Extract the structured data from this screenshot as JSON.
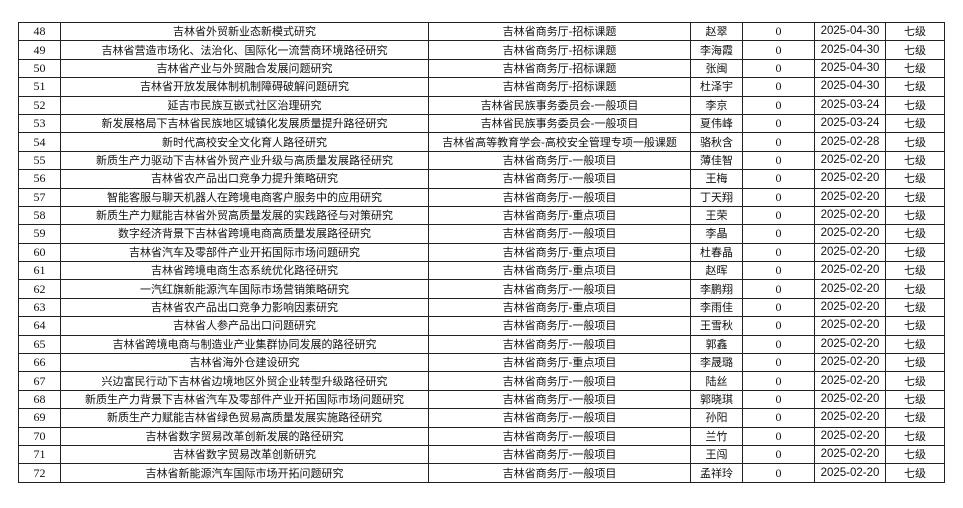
{
  "rows": [
    {
      "no": "48",
      "title": "吉林省外贸新业态新模式研究",
      "dept": "吉林省商务厅-招标课题",
      "person": "赵翠",
      "count": "0",
      "date": "2025-04-30",
      "level": "七级"
    },
    {
      "no": "49",
      "title": "吉林省营造市场化、法治化、国际化一流营商环境路径研究",
      "dept": "吉林省商务厅-招标课题",
      "person": "李海霞",
      "count": "0",
      "date": "2025-04-30",
      "level": "七级"
    },
    {
      "no": "50",
      "title": "吉林省产业与外贸融合发展问题研究",
      "dept": "吉林省商务厅-招标课题",
      "person": "张闽",
      "count": "0",
      "date": "2025-04-30",
      "level": "七级"
    },
    {
      "no": "51",
      "title": "吉林省开放发展体制机制障碍破解问题研究",
      "dept": "吉林省商务厅-招标课题",
      "person": "杜泽宇",
      "count": "0",
      "date": "2025-04-30",
      "level": "七级"
    },
    {
      "no": "52",
      "title": "延吉市民族互嵌式社区治理研究",
      "dept": "吉林省民族事务委员会-一般项目",
      "person": "李京",
      "count": "0",
      "date": "2025-03-24",
      "level": "七级"
    },
    {
      "no": "53",
      "title": "新发展格局下吉林省民族地区城镇化发展质量提升路径研究",
      "dept": "吉林省民族事务委员会-一般项目",
      "person": "夏伟峰",
      "count": "0",
      "date": "2025-03-24",
      "level": "七级"
    },
    {
      "no": "54",
      "title": "新时代高校安全文化育人路径研究",
      "dept": "吉林省高等教育学会-高校安全管理专项一般课题",
      "person": "骆秋含",
      "count": "0",
      "date": "2025-02-28",
      "level": "七级"
    },
    {
      "no": "55",
      "title": "新质生产力驱动下吉林省外贸产业升级与高质量发展路径研究",
      "dept": "吉林省商务厅-一般项目",
      "person": "薄佳智",
      "count": "0",
      "date": "2025-02-20",
      "level": "七级"
    },
    {
      "no": "56",
      "title": "吉林省农产品出口竞争力提升策略研究",
      "dept": "吉林省商务厅-一般项目",
      "person": "王梅",
      "count": "0",
      "date": "2025-02-20",
      "level": "七级"
    },
    {
      "no": "57",
      "title": "智能客服与聊天机器人在跨境电商客户服务中的应用研究",
      "dept": "吉林省商务厅-一般项目",
      "person": "丁天翔",
      "count": "0",
      "date": "2025-02-20",
      "level": "七级"
    },
    {
      "no": "58",
      "title": "新质生产力赋能吉林省外贸高质量发展的实践路径与对策研究",
      "dept": "吉林省商务厅-重点项目",
      "person": "王荣",
      "count": "0",
      "date": "2025-02-20",
      "level": "七级"
    },
    {
      "no": "59",
      "title": "数字经济背景下吉林省跨境电商高质量发展路径研究",
      "dept": "吉林省商务厅-一般项目",
      "person": "李晶",
      "count": "0",
      "date": "2025-02-20",
      "level": "七级"
    },
    {
      "no": "60",
      "title": "吉林省汽车及零部件产业开拓国际市场问题研究",
      "dept": "吉林省商务厅-重点项目",
      "person": "杜春晶",
      "count": "0",
      "date": "2025-02-20",
      "level": "七级"
    },
    {
      "no": "61",
      "title": "吉林省跨境电商生态系统优化路径研究",
      "dept": "吉林省商务厅-重点项目",
      "person": "赵晖",
      "count": "0",
      "date": "2025-02-20",
      "level": "七级"
    },
    {
      "no": "62",
      "title": "一汽红旗新能源汽车国际市场营销策略研究",
      "dept": "吉林省商务厅-一般项目",
      "person": "李鹏翔",
      "count": "0",
      "date": "2025-02-20",
      "level": "七级"
    },
    {
      "no": "63",
      "title": "吉林省农产品出口竞争力影响因素研究",
      "dept": "吉林省商务厅-重点项目",
      "person": "李雨佳",
      "count": "0",
      "date": "2025-02-20",
      "level": "七级"
    },
    {
      "no": "64",
      "title": "吉林省人参产品出口问题研究",
      "dept": "吉林省商务厅-一般项目",
      "person": "王雪秋",
      "count": "0",
      "date": "2025-02-20",
      "level": "七级"
    },
    {
      "no": "65",
      "title": "吉林省跨境电商与制造业产业集群协同发展的路径研究",
      "dept": "吉林省商务厅-一般项目",
      "person": "郭鑫",
      "count": "0",
      "date": "2025-02-20",
      "level": "七级"
    },
    {
      "no": "66",
      "title": "吉林省海外仓建设研究",
      "dept": "吉林省商务厅-重点项目",
      "person": "李晟璐",
      "count": "0",
      "date": "2025-02-20",
      "level": "七级"
    },
    {
      "no": "67",
      "title": "兴边富民行动下吉林省边境地区外贸企业转型升级路径研究",
      "dept": "吉林省商务厅-一般项目",
      "person": "陆丝",
      "count": "0",
      "date": "2025-02-20",
      "level": "七级"
    },
    {
      "no": "68",
      "title": "新质生产力背景下吉林省汽车及零部件产业开拓国际市场问题研究",
      "dept": "吉林省商务厅-一般项目",
      "person": "郭晓琪",
      "count": "0",
      "date": "2025-02-20",
      "level": "七级"
    },
    {
      "no": "69",
      "title": "新质生产力赋能吉林省绿色贸易高质量发展实施路径研究",
      "dept": "吉林省商务厅-一般项目",
      "person": "孙阳",
      "count": "0",
      "date": "2025-02-20",
      "level": "七级"
    },
    {
      "no": "70",
      "title": "吉林省数字贸易改革创新发展的路径研究",
      "dept": "吉林省商务厅-一般项目",
      "person": "兰竹",
      "count": "0",
      "date": "2025-02-20",
      "level": "七级"
    },
    {
      "no": "71",
      "title": "吉林省数字贸易改革创新研究",
      "dept": "吉林省商务厅-一般项目",
      "person": "王闯",
      "count": "0",
      "date": "2025-02-20",
      "level": "七级"
    },
    {
      "no": "72",
      "title": "吉林省新能源汽车国际市场开拓问题研究",
      "dept": "吉林省商务厅-一般项目",
      "person": "孟祥玲",
      "count": "0",
      "date": "2025-02-20",
      "level": "七级"
    }
  ]
}
